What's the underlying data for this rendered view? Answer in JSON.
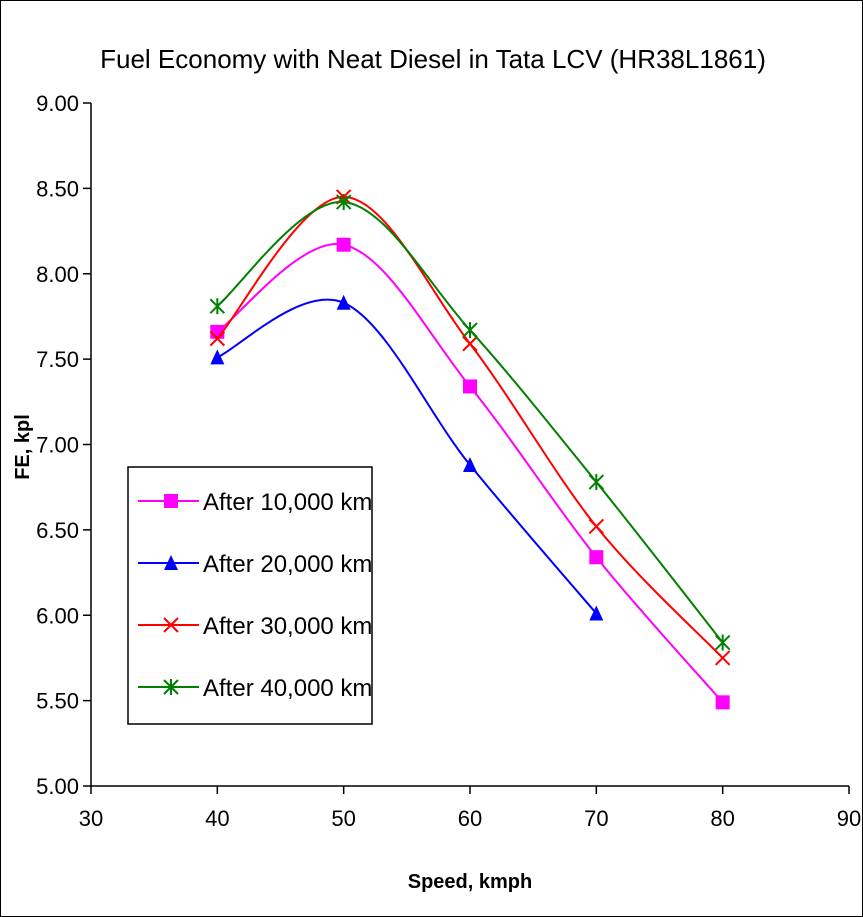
{
  "chart_data": {
    "type": "line",
    "title": "Fuel Economy with Neat Diesel in Tata LCV (HR38L1861)",
    "xlabel": "Speed, kmph",
    "ylabel": "FE, kpl",
    "xlim": [
      30,
      90
    ],
    "ylim": [
      5.0,
      9.0
    ],
    "x_ticks": [
      "30",
      "40",
      "50",
      "60",
      "70",
      "80",
      "90"
    ],
    "y_ticks": [
      "5.00",
      "5.50",
      "6.00",
      "6.50",
      "7.00",
      "7.50",
      "8.00",
      "8.50",
      "9.00"
    ],
    "grid": false,
    "legend_position": "left",
    "smooth": true,
    "series": [
      {
        "name": "After 10,000 km",
        "color": "#ff00ff",
        "marker": "square",
        "x": [
          40,
          50,
          60,
          70,
          80
        ],
        "y": [
          7.66,
          8.17,
          7.34,
          6.34,
          5.49
        ]
      },
      {
        "name": "After 20,000 km",
        "color": "#0000ff",
        "marker": "triangle",
        "x": [
          40,
          50,
          60,
          70
        ],
        "y": [
          7.51,
          7.83,
          6.88,
          6.01
        ]
      },
      {
        "name": "After 30,000 km",
        "color": "#ff0000",
        "marker": "x",
        "x": [
          40,
          50,
          60,
          70,
          80
        ],
        "y": [
          7.62,
          8.45,
          7.59,
          6.52,
          5.75
        ]
      },
      {
        "name": "After 40,000 km",
        "color": "#008000",
        "marker": "star",
        "x": [
          40,
          50,
          60,
          70,
          80
        ],
        "y": [
          7.81,
          8.42,
          7.67,
          6.78,
          5.84
        ]
      }
    ]
  }
}
